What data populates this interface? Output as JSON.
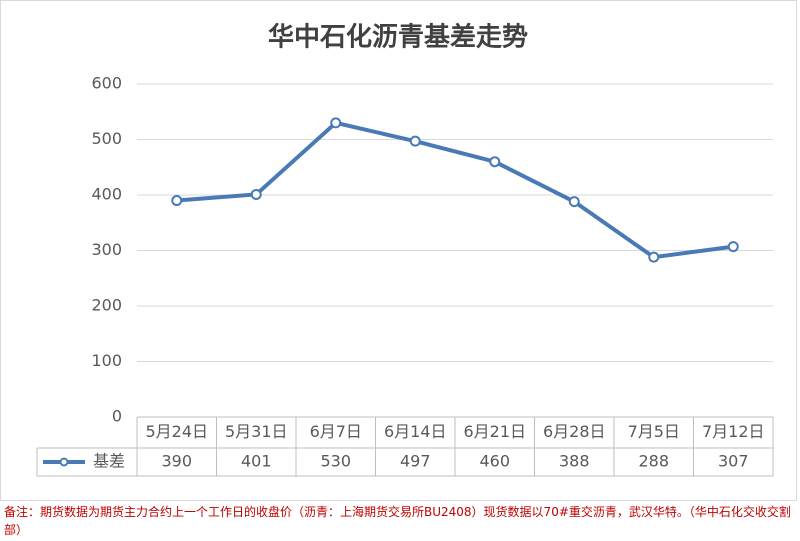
{
  "chart_data": {
    "type": "line",
    "title": "华中石化沥青基差走势",
    "categories": [
      "5月24日",
      "5月31日",
      "6月7日",
      "6月14日",
      "6月21日",
      "6月28日",
      "7月5日",
      "7月12日"
    ],
    "series": [
      {
        "name": "基差",
        "color": "#4a7ab5",
        "values": [
          390,
          401,
          530,
          497,
          460,
          388,
          288,
          307
        ]
      }
    ],
    "ylim": [
      0,
      600
    ],
    "yticks": [
      0,
      100,
      200,
      300,
      400,
      500,
      600
    ],
    "grid": true,
    "note": "备注：期货数据为期货主力合约上一个工作日的收盘价（沥青：上海期货交易所BU2408）现货数据以70#重交沥青，武汉华特。（华中石化交收交割部）"
  }
}
